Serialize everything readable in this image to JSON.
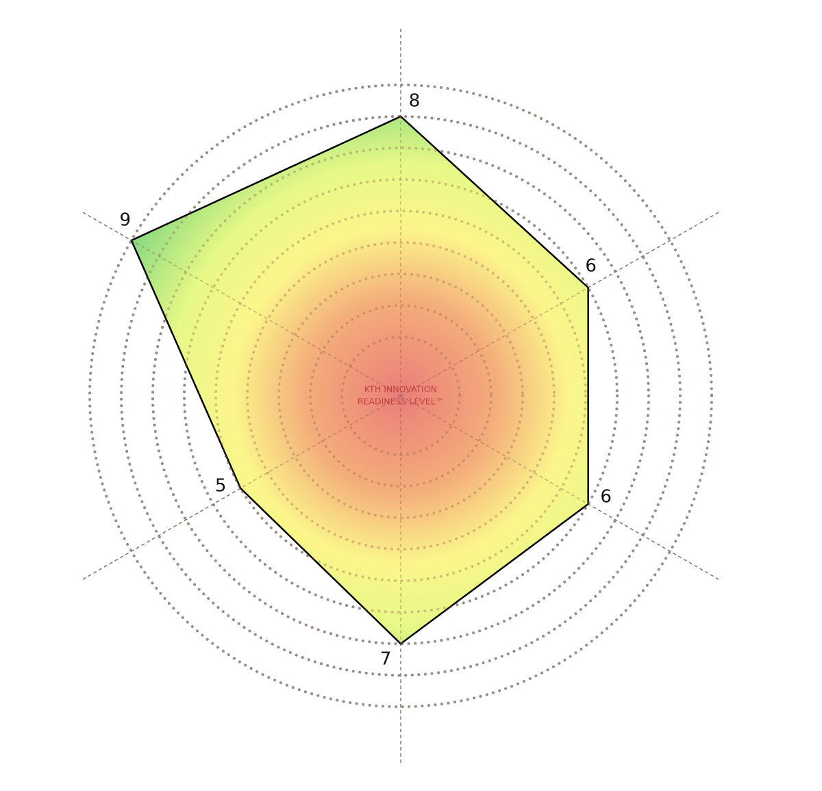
{
  "chart_data": {
    "type": "radar",
    "center_text": [
      "KTH INNOVATION",
      "READINESS LEVEL™"
    ],
    "values": [
      8,
      6,
      6,
      7,
      5,
      9
    ],
    "rlim": [
      0,
      9
    ],
    "rticks": [
      1,
      2,
      3,
      4,
      5,
      6,
      7,
      8,
      9
    ],
    "line_color": "#000000",
    "gradient_colors": [
      "#e8706c",
      "#f3a56c",
      "#fbf47e",
      "#e4f879",
      "#6ccf70"
    ]
  }
}
